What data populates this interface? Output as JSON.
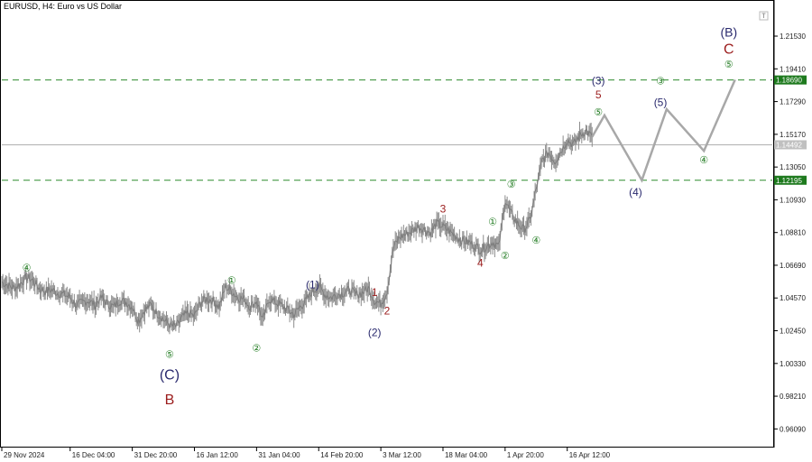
{
  "header": {
    "symbol_line": "EURUSD, H4:  Euro vs US Dollar"
  },
  "chart_data": {
    "type": "line",
    "title": "EURUSD, H4:  Euro vs US Dollar",
    "ylim": [
      0.95,
      1.227
    ],
    "y_ticks": [
      "1.21530",
      "1.19410",
      "1.17290",
      "1.15170",
      "1.13050",
      "1.10930",
      "1.08810",
      "1.06690",
      "1.04570",
      "1.02450",
      "1.00330",
      "0.98210",
      "0.96090"
    ],
    "x_ticks": [
      {
        "label": "29 Nov 2024",
        "x": 0
      },
      {
        "label": "16 Dec 04:00",
        "x": 11
      },
      {
        "label": "31 Dec 20:00",
        "x": 21
      },
      {
        "label": "16 Jan 12:00",
        "x": 31
      },
      {
        "label": "31 Jan 04:00",
        "x": 41
      },
      {
        "label": "14 Feb 20:00",
        "x": 51
      },
      {
        "label": "3 Mar 12:00",
        "x": 61
      },
      {
        "label": "18 Mar 04:00",
        "x": 71
      },
      {
        "label": "1 Apr 20:00",
        "x": 81
      },
      {
        "label": "16 Apr 12:00",
        "x": 91
      }
    ],
    "xlim": [
      0,
      124
    ],
    "price_series": {
      "name": "",
      "x": [
        0,
        1,
        2,
        3,
        4,
        5,
        6,
        7,
        8,
        9,
        10,
        11,
        12,
        13,
        14,
        15,
        16,
        17,
        18,
        19,
        20,
        21,
        22,
        23,
        24,
        25,
        26,
        27,
        28,
        29,
        30,
        31,
        32,
        33,
        34,
        35,
        36,
        37,
        38,
        39,
        40,
        41,
        42,
        43,
        44,
        45,
        46,
        47,
        48,
        49,
        50,
        51,
        52,
        53,
        54,
        55,
        56,
        57,
        58,
        59,
        60,
        61,
        62,
        63,
        64,
        65,
        66,
        67,
        68,
        69,
        70,
        71,
        72,
        73,
        74,
        75,
        76,
        77,
        78,
        79,
        80,
        81,
        82,
        83,
        84,
        85,
        86,
        87,
        88,
        89,
        90,
        91,
        92,
        93,
        94,
        95
      ],
      "y": [
        1.056,
        1.054,
        1.052,
        1.055,
        1.059,
        1.057,
        1.052,
        1.05,
        1.051,
        1.049,
        1.048,
        1.046,
        1.041,
        1.043,
        1.044,
        1.041,
        1.046,
        1.042,
        1.04,
        1.044,
        1.043,
        1.04,
        1.031,
        1.038,
        1.041,
        1.036,
        1.032,
        1.028,
        1.027,
        1.033,
        1.036,
        1.034,
        1.043,
        1.045,
        1.044,
        1.04,
        1.053,
        1.05,
        1.046,
        1.045,
        1.04,
        1.044,
        1.031,
        1.045,
        1.043,
        1.041,
        1.038,
        1.035,
        1.04,
        1.044,
        1.05,
        1.053,
        1.048,
        1.046,
        1.048,
        1.049,
        1.051,
        1.048,
        1.049,
        1.052,
        1.044,
        1.042,
        1.05,
        1.078,
        1.085,
        1.087,
        1.089,
        1.092,
        1.09,
        1.088,
        1.094,
        1.092,
        1.089,
        1.086,
        1.083,
        1.082,
        1.08,
        1.077,
        1.079,
        1.082,
        1.079,
        1.109,
        1.1,
        1.094,
        1.09,
        1.096,
        1.116,
        1.135,
        1.14,
        1.134,
        1.141,
        1.148,
        1.145,
        1.151,
        1.154,
        1.15
      ]
    },
    "forecast_path": {
      "x": [
        95,
        97,
        103,
        107,
        113,
        118
      ],
      "y": [
        1.15,
        1.164,
        1.122,
        1.168,
        1.141,
        1.187
      ]
    },
    "levels": [
      {
        "value": 1.1869,
        "label": "1.18690",
        "color": "#2e8b2e"
      },
      {
        "value": 1.12195,
        "label": "1.12195",
        "color": "#2e8b2e"
      }
    ],
    "current_price": {
      "value": 1.14492,
      "label": "1.14492"
    },
    "wave_labels": [
      {
        "text": "④",
        "x": 4,
        "y": 1.063,
        "style": "green"
      },
      {
        "text": "⑤",
        "x": 27,
        "y": 1.007,
        "style": "green"
      },
      {
        "text": "(C)",
        "x": 27,
        "y": 0.993,
        "style": "bigblue"
      },
      {
        "text": "B",
        "x": 27,
        "y": 0.977,
        "style": "bigred"
      },
      {
        "text": "①",
        "x": 37,
        "y": 1.055,
        "style": "green"
      },
      {
        "text": "②",
        "x": 41,
        "y": 1.011,
        "style": "green"
      },
      {
        "text": "(1)",
        "x": 50,
        "y": 1.052,
        "style": "blue"
      },
      {
        "text": "1",
        "x": 60,
        "y": 1.047,
        "style": "red"
      },
      {
        "text": "2",
        "x": 62,
        "y": 1.035,
        "style": "red"
      },
      {
        "text": "(2)",
        "x": 60,
        "y": 1.021,
        "style": "blue"
      },
      {
        "text": "3",
        "x": 71,
        "y": 1.101,
        "style": "red"
      },
      {
        "text": "4",
        "x": 77,
        "y": 1.066,
        "style": "red"
      },
      {
        "text": "①",
        "x": 79,
        "y": 1.093,
        "style": "green"
      },
      {
        "text": "②",
        "x": 81,
        "y": 1.071,
        "style": "green"
      },
      {
        "text": "③",
        "x": 82,
        "y": 1.117,
        "style": "green"
      },
      {
        "text": "④",
        "x": 86,
        "y": 1.081,
        "style": "green"
      },
      {
        "text": "(3)",
        "x": 96,
        "y": 1.184,
        "style": "blue"
      },
      {
        "text": "5",
        "x": 96,
        "y": 1.175,
        "style": "red"
      },
      {
        "text": "⑤",
        "x": 96,
        "y": 1.164,
        "style": "green"
      },
      {
        "text": "(4)",
        "x": 102,
        "y": 1.112,
        "style": "blue"
      },
      {
        "text": "③",
        "x": 106,
        "y": 1.184,
        "style": "green"
      },
      {
        "text": "(5)",
        "x": 106,
        "y": 1.17,
        "style": "blue"
      },
      {
        "text": "④",
        "x": 113,
        "y": 1.133,
        "style": "green"
      },
      {
        "text": "(B)",
        "x": 117,
        "y": 1.215,
        "style": "medblue"
      },
      {
        "text": "C",
        "x": 117,
        "y": 1.204,
        "style": "bigred"
      },
      {
        "text": "⑤",
        "x": 117,
        "y": 1.195,
        "style": "green"
      }
    ],
    "colors": {
      "price": "#8c8c8c",
      "forecast": "#a8a8a8",
      "level": "#2e8b2e",
      "current": "#b0b0b0"
    }
  }
}
